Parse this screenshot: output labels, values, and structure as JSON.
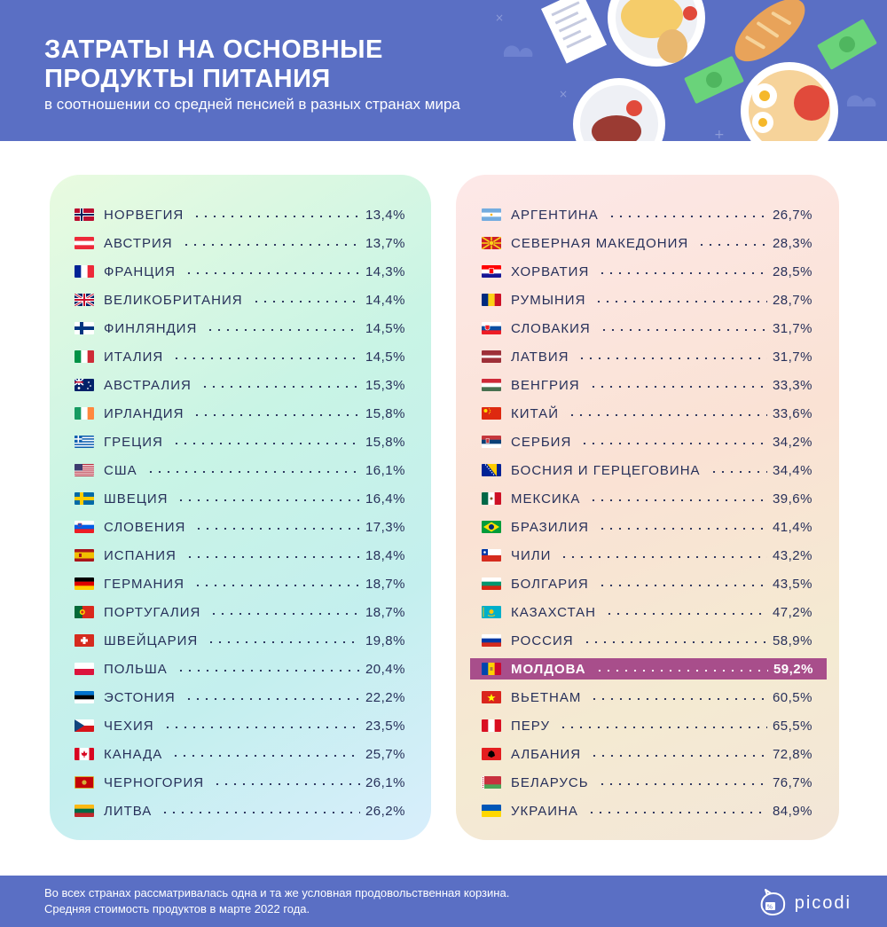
{
  "header": {
    "title_line1": "ЗАТРАТЫ НА ОСНОВНЫЕ",
    "title_line2": "ПРОДУКТЫ ПИТАНИЯ",
    "subtitle": "в соотношении со средней пенсией в разных странах мира"
  },
  "colors": {
    "header_bg": "#5a6fc4",
    "highlight": "#a84e8b",
    "text": "#27305a"
  },
  "chart_data": {
    "type": "table",
    "title": "ЗАТРАТЫ НА ОСНОВНЫЕ ПРОДУКТЫ ПИТАНИЯ",
    "subtitle": "в соотношении со средней пенсией в разных странах мира",
    "unit": "%",
    "highlighted": "МОЛДОВА",
    "columns": [
      [
        {
          "country": "НОРВЕГИЯ",
          "value": "13,4%",
          "flag": "flag-norway"
        },
        {
          "country": "АВСТРИЯ",
          "value": "13,7%",
          "flag": "flag-austria"
        },
        {
          "country": "ФРАНЦИЯ",
          "value": "14,3%",
          "flag": "flag-france"
        },
        {
          "country": "ВЕЛИКОБРИТАНИЯ",
          "value": "14,4%",
          "flag": "flag-uk"
        },
        {
          "country": "ФИНЛЯНДИЯ",
          "value": "14,5%",
          "flag": "flag-finland"
        },
        {
          "country": "ИТАЛИЯ",
          "value": "14,5%",
          "flag": "flag-italy"
        },
        {
          "country": "АВСТРАЛИЯ",
          "value": "15,3%",
          "flag": "flag-australia"
        },
        {
          "country": "ИРЛАНДИЯ",
          "value": "15,8%",
          "flag": "flag-ireland"
        },
        {
          "country": "ГРЕЦИЯ",
          "value": "15,8%",
          "flag": "flag-greece"
        },
        {
          "country": "США",
          "value": "16,1%",
          "flag": "flag-usa"
        },
        {
          "country": "ШВЕЦИЯ",
          "value": "16,4%",
          "flag": "flag-sweden"
        },
        {
          "country": "СЛОВЕНИЯ",
          "value": "17,3%",
          "flag": "flag-slovenia"
        },
        {
          "country": "ИСПАНИЯ",
          "value": "18,4%",
          "flag": "flag-spain"
        },
        {
          "country": "ГЕРМАНИЯ",
          "value": "18,7%",
          "flag": "flag-germany"
        },
        {
          "country": "ПОРТУГАЛИЯ",
          "value": "18,7%",
          "flag": "flag-portugal"
        },
        {
          "country": "ШВЕЙЦАРИЯ",
          "value": "19,8%",
          "flag": "flag-switzerland"
        },
        {
          "country": "ПОЛЬША",
          "value": "20,4%",
          "flag": "flag-poland"
        },
        {
          "country": "ЭСТОНИЯ",
          "value": "22,2%",
          "flag": "flag-estonia"
        },
        {
          "country": "ЧЕХИЯ",
          "value": "23,5%",
          "flag": "flag-czechia"
        },
        {
          "country": "КАНАДА",
          "value": "25,7%",
          "flag": "flag-canada"
        },
        {
          "country": "ЧЕРНОГОРИЯ",
          "value": "26,1%",
          "flag": "flag-montenegro"
        },
        {
          "country": "ЛИТВА",
          "value": "26,2%",
          "flag": "flag-lithuania"
        }
      ],
      [
        {
          "country": "АРГЕНТИНА",
          "value": "26,7%",
          "flag": "flag-argentina"
        },
        {
          "country": "СЕВЕРНАЯ МАКЕДОНИЯ",
          "value": "28,3%",
          "flag": "flag-north-macedonia"
        },
        {
          "country": "ХОРВАТИЯ",
          "value": "28,5%",
          "flag": "flag-croatia"
        },
        {
          "country": "РУМЫНИЯ",
          "value": "28,7%",
          "flag": "flag-romania"
        },
        {
          "country": "СЛОВАКИЯ",
          "value": "31,7%",
          "flag": "flag-slovakia"
        },
        {
          "country": "ЛАТВИЯ",
          "value": "31,7%",
          "flag": "flag-latvia"
        },
        {
          "country": "ВЕНГРИЯ",
          "value": "33,3%",
          "flag": "flag-hungary"
        },
        {
          "country": "КИТАЙ",
          "value": "33,6%",
          "flag": "flag-china"
        },
        {
          "country": "СЕРБИЯ",
          "value": "34,2%",
          "flag": "flag-serbia"
        },
        {
          "country": "БОСНИЯ И ГЕРЦЕГОВИНА",
          "value": "34,4%",
          "flag": "flag-bosnia"
        },
        {
          "country": "МЕКСИКА",
          "value": "39,6%",
          "flag": "flag-mexico"
        },
        {
          "country": "БРАЗИЛИЯ",
          "value": "41,4%",
          "flag": "flag-brazil"
        },
        {
          "country": "ЧИЛИ",
          "value": "43,2%",
          "flag": "flag-chile"
        },
        {
          "country": "БОЛГАРИЯ",
          "value": "43,5%",
          "flag": "flag-bulgaria"
        },
        {
          "country": "КАЗАХСТАН",
          "value": "47,2%",
          "flag": "flag-kazakhstan"
        },
        {
          "country": "РОССИЯ",
          "value": "58,9%",
          "flag": "flag-russia"
        },
        {
          "country": "МОЛДОВА",
          "value": "59,2%",
          "flag": "flag-moldova"
        },
        {
          "country": "ВЬЕТНАМ",
          "value": "60,5%",
          "flag": "flag-vietnam"
        },
        {
          "country": "ПЕРУ",
          "value": "65,5%",
          "flag": "flag-peru"
        },
        {
          "country": "АЛБАНИЯ",
          "value": "72,8%",
          "flag": "flag-albania"
        },
        {
          "country": "БЕЛАРУСЬ",
          "value": "76,7%",
          "flag": "flag-belarus"
        },
        {
          "country": "УКРАИНА",
          "value": "84,9%",
          "flag": "flag-ukraine"
        }
      ]
    ]
  },
  "footer": {
    "note_line1": "Во всех странах рассматривалась одна и та же условная продовольственная корзина.",
    "note_line2": "Средняя стоимость продуктов в марте 2022 года.",
    "brand": "picodi",
    "brand_icon": "piggy-bank-icon"
  }
}
